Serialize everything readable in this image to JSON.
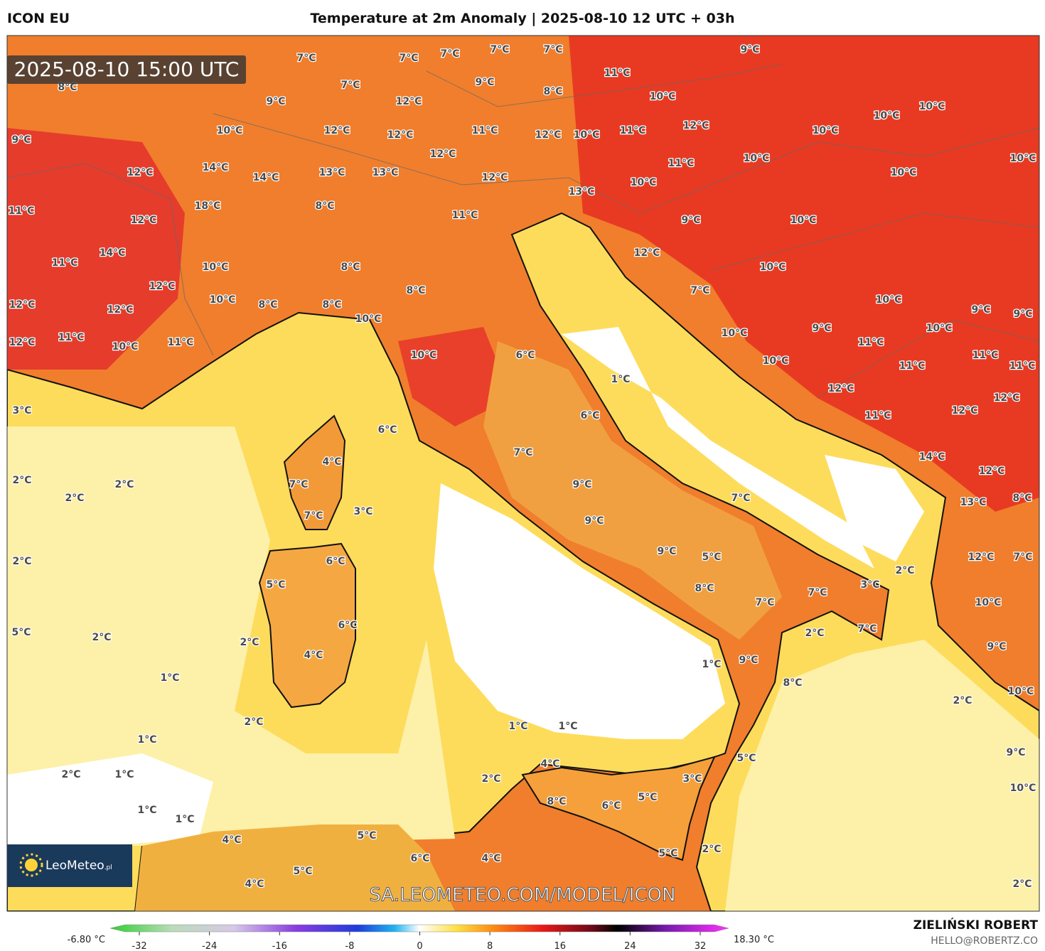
{
  "header": {
    "model": "ICON EU",
    "title": "Temperature at 2m Anomaly | 2025-08-10 12 UTC + 03h"
  },
  "map": {
    "valid_time": "2025-08-10 15:00 UTC",
    "watermark": "SA.LEOMETEO.COM/MODEL/ICON",
    "logo": "LeoMeteo",
    "logo_suffix": ".pl",
    "labels": [
      "7°C",
      "7°C",
      "7°C",
      "7°C",
      "7°C",
      "9°C",
      "8°C",
      "7°C",
      "9°C",
      "11°C",
      "8°C",
      "10°C",
      "9°C",
      "12°C",
      "10°C",
      "10°C",
      "9°C",
      "10°C",
      "12°C",
      "12°C",
      "11°C",
      "12°C",
      "10°C",
      "11°C",
      "12°C",
      "10°C",
      "12°C",
      "11°C",
      "10°C",
      "10°C",
      "12°C",
      "14°C",
      "14°C",
      "13°C",
      "13°C",
      "12°C",
      "10°C",
      "10°C",
      "13°C",
      "18°C",
      "8°C",
      "11°C",
      "12°C",
      "11°C",
      "9°C",
      "10°C",
      "12°C",
      "14°C",
      "11°C",
      "10°C",
      "8°C",
      "10°C",
      "12°C",
      "8°C",
      "7°C",
      "10°C",
      "8°C",
      "8°C",
      "10°C",
      "12°C",
      "12°C",
      "9°C",
      "9°C",
      "10°C",
      "9°C",
      "10°C",
      "10°C",
      "11°C",
      "12°C",
      "10°C",
      "11°C",
      "11°C",
      "6°C",
      "10°C",
      "10°C",
      "11°C",
      "11°C",
      "11°C",
      "1°C",
      "12°C",
      "12°C",
      "3°C",
      "6°C",
      "12°C",
      "11°C",
      "6°C",
      "7°C",
      "14°C",
      "4°C",
      "12°C",
      "2°C",
      "2°C",
      "7°C",
      "9°C",
      "2°C",
      "7°C",
      "13°C",
      "8°C",
      "3°C",
      "7°C",
      "9°C",
      "9°C",
      "12°C",
      "2°C",
      "6°C",
      "5°C",
      "7°C",
      "2°C",
      "5°C",
      "3°C",
      "8°C",
      "7°C",
      "7°C",
      "10°C",
      "6°C",
      "5°C",
      "2°C",
      "2°C",
      "7°C",
      "2°C",
      "9°C",
      "4°C",
      "9°C",
      "1°C",
      "1°C",
      "8°C",
      "10°C",
      "2°C",
      "2°C",
      "1°C",
      "1°C",
      "1°C",
      "5°C",
      "9°C",
      "4°C",
      "2°C",
      "1°C",
      "2°C",
      "3°C",
      "10°C",
      "5°C",
      "8°C",
      "6°C",
      "1°C",
      "1°C",
      "4°C",
      "5°C",
      "2°C",
      "5°C",
      "6°C",
      "4°C",
      "5°C",
      "4°C",
      "2°C"
    ]
  },
  "colorbar": {
    "min_label": "-6.80 °C",
    "max_label": "18.30 °C",
    "ticks": [
      -32,
      -24,
      -16,
      -8,
      0,
      8,
      16,
      24,
      32
    ]
  },
  "credits": {
    "author": "ZIELIŃSKI ROBERT",
    "email": "HELLO@ROBERTZ.CO"
  }
}
